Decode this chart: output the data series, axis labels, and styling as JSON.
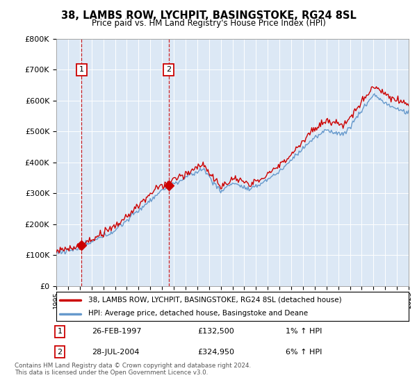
{
  "title": "38, LAMBS ROW, LYCHPIT, BASINGSTOKE, RG24 8SL",
  "subtitle": "Price paid vs. HM Land Registry's House Price Index (HPI)",
  "legend_line1": "38, LAMBS ROW, LYCHPIT, BASINGSTOKE, RG24 8SL (detached house)",
  "legend_line2": "HPI: Average price, detached house, Basingstoke and Deane",
  "sale1_date": "26-FEB-1997",
  "sale1_price": "£132,500",
  "sale1_hpi": "1% ↑ HPI",
  "sale1_year": 1997.15,
  "sale1_value": 132500,
  "sale2_date": "28-JUL-2004",
  "sale2_price": "£324,950",
  "sale2_hpi": "6% ↑ HPI",
  "sale2_year": 2004.57,
  "sale2_value": 324950,
  "line_color_price": "#cc0000",
  "line_color_hpi": "#6699cc",
  "shade_color": "#dce8f5",
  "background_color": "#dce8f5",
  "grid_color": "#ffffff",
  "ylim": [
    0,
    800000
  ],
  "xlim_start": 1995,
  "xlim_end": 2025,
  "footer": "Contains HM Land Registry data © Crown copyright and database right 2024.\nThis data is licensed under the Open Government Licence v3.0."
}
